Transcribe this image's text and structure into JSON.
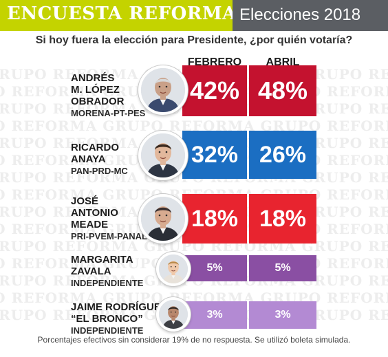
{
  "header": {
    "title": "ENCUESTA REFORMA",
    "subtitle": "Elecciones 2018"
  },
  "watermark_text": "GRUPO REFORMA",
  "chart_data": {
    "type": "table",
    "title": "Si hoy fuera la elección para Presidente, ¿por quién votaría?",
    "columns": [
      "FEBRERO",
      "ABRIL"
    ],
    "rows": [
      {
        "name_lines": [
          "ANDRÉS",
          "M. LÓPEZ",
          "OBRADOR"
        ],
        "party": "MORENA-PT-PES",
        "color": "#c4122f",
        "values": [
          42,
          48
        ],
        "labels": [
          "42%",
          "48%"
        ]
      },
      {
        "name_lines": [
          "RICARDO",
          "ANAYA"
        ],
        "party": "PAN-PRD-MC",
        "color": "#1b6ec2",
        "values": [
          32,
          26
        ],
        "labels": [
          "32%",
          "26%"
        ]
      },
      {
        "name_lines": [
          "JOSÉ",
          "ANTONIO",
          "MEADE"
        ],
        "party": "PRI-PVEM-PANAL",
        "color": "#e8242f",
        "values": [
          18,
          18
        ],
        "labels": [
          "18%",
          "18%"
        ]
      },
      {
        "name_lines": [
          "MARGARITA",
          "ZAVALA"
        ],
        "party": "INDEPENDIENTE",
        "color": "#8a4fa3",
        "values": [
          5,
          5
        ],
        "labels": [
          "5%",
          "5%"
        ]
      },
      {
        "name_lines": [
          "JAIME RODRÍGUEZ",
          "“EL BRONCO”"
        ],
        "party": "INDEPENDIENTE",
        "color": "#b38ad3",
        "values": [
          3,
          3
        ],
        "labels": [
          "3%",
          "3%"
        ]
      }
    ],
    "footnote": "Porcentajes efectivos sin considerar 19% de no respuesta. Se utilizó boleta simulada."
  }
}
